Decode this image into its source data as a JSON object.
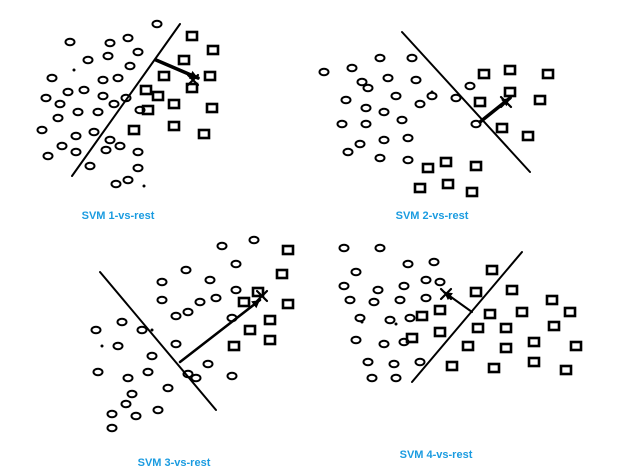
{
  "colors": {
    "label": "#1a9be0",
    "ink": "#000000",
    "background": "#ffffff"
  },
  "panels": [
    {
      "label": "SVM 1-vs-rest"
    },
    {
      "label": "SVM 2-vs-rest"
    },
    {
      "label": "SVM 3-vs-rest"
    },
    {
      "label": "SVM 4-vs-rest"
    }
  ]
}
